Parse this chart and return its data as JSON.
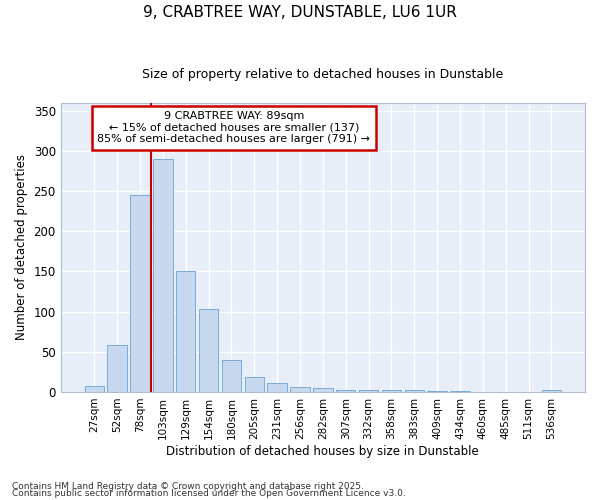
{
  "title": "9, CRABTREE WAY, DUNSTABLE, LU6 1UR",
  "subtitle": "Size of property relative to detached houses in Dunstable",
  "xlabel": "Distribution of detached houses by size in Dunstable",
  "ylabel": "Number of detached properties",
  "bar_color": "#c8d8ee",
  "bar_edge_color": "#7aabda",
  "background_color": "#e8eef8",
  "grid_color": "#ffffff",
  "fig_bg_color": "#ffffff",
  "categories": [
    "27sqm",
    "52sqm",
    "78sqm",
    "103sqm",
    "129sqm",
    "154sqm",
    "180sqm",
    "205sqm",
    "231sqm",
    "256sqm",
    "282sqm",
    "307sqm",
    "332sqm",
    "358sqm",
    "383sqm",
    "409sqm",
    "434sqm",
    "460sqm",
    "485sqm",
    "511sqm",
    "536sqm"
  ],
  "values": [
    7,
    58,
    245,
    290,
    150,
    103,
    40,
    19,
    11,
    6,
    5,
    3,
    3,
    3,
    2,
    1,
    1,
    0,
    0,
    0,
    2
  ],
  "ylim": [
    0,
    360
  ],
  "yticks": [
    0,
    50,
    100,
    150,
    200,
    250,
    300,
    350
  ],
  "property_line_x": 2.5,
  "annotation_text": "9 CRABTREE WAY: 89sqm\n← 15% of detached houses are smaller (137)\n85% of semi-detached houses are larger (791) →",
  "annotation_box_color": "#ffffff",
  "annotation_box_edge": "#cc0000",
  "red_line_color": "#cc0000",
  "footnote1": "Contains HM Land Registry data © Crown copyright and database right 2025.",
  "footnote2": "Contains public sector information licensed under the Open Government Licence v3.0."
}
